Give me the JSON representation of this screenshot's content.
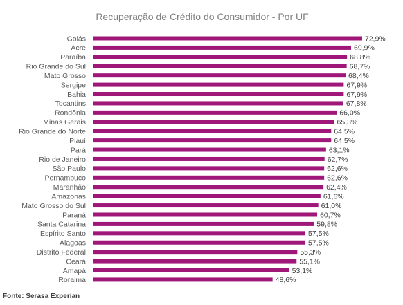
{
  "chart_data": {
    "type": "bar",
    "orientation": "horizontal",
    "title": "Recuperação de Crédito do Consumidor - Por UF",
    "categories": [
      "Goiás",
      "Acre",
      "Paraíba",
      "Rio Grande do Sul",
      "Mato Grosso",
      "Sergipe",
      "Bahia",
      "Tocantins",
      "Rondônia",
      "Minas Gerais",
      "Rio Grande do Norte",
      "Piauí",
      "Pará",
      "Rio de Janeiro",
      "São Paulo",
      "Pernambuco",
      "Maranhão",
      "Amazonas",
      "Mato Grosso do Sul",
      "Paraná",
      "Santa Catarina",
      "Espírito Santo",
      "Alagoas",
      "Distrito Federal",
      "Ceará",
      "Amapá",
      "Roraima"
    ],
    "values": [
      72.9,
      69.9,
      68.8,
      68.7,
      68.4,
      67.9,
      67.9,
      67.8,
      66.0,
      65.3,
      64.5,
      64.5,
      63.1,
      62.7,
      62.6,
      62.6,
      62.4,
      61.6,
      61.0,
      60.7,
      59.8,
      57.5,
      57.5,
      55.3,
      55.1,
      53.1,
      48.6
    ],
    "value_labels": [
      "72,9%",
      "69,9%",
      "68,8%",
      "68,7%",
      "68,4%",
      "67,9%",
      "67,9%",
      "67,8%",
      "66,0%",
      "65,3%",
      "64,5%",
      "64,5%",
      "63,1%",
      "62,7%",
      "62,6%",
      "62,6%",
      "62,4%",
      "61,6%",
      "61,0%",
      "60,7%",
      "59,8%",
      "57,5%",
      "57,5%",
      "55,3%",
      "55,1%",
      "53,1%",
      "48,6%"
    ],
    "unit": "%",
    "xlim": [
      0,
      72.9
    ],
    "grid": false,
    "legend": "none",
    "bar_color": "#a0177a"
  },
  "footer": {
    "source": "Fonte: Serasa Experian"
  }
}
